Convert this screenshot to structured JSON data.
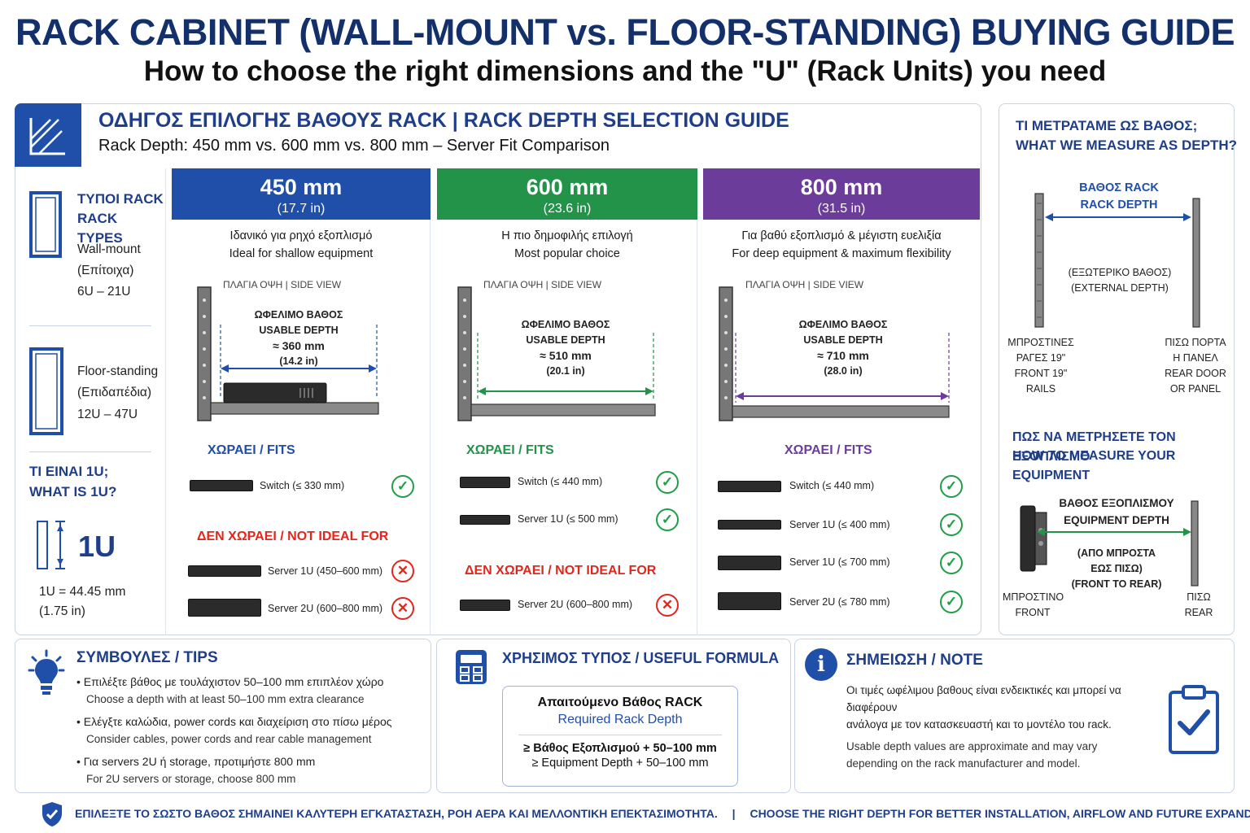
{
  "title": "RACK CABINET (WALL-MOUNT vs. FLOOR-STANDING) BUYING GUIDE",
  "subtitle": "How to choose the right dimensions and the \"U\" (Rack Units) you need",
  "guide": {
    "title": "ΟΔΗΓΟΣ ΕΠΙΛΟΓΗΣ ΒΑΘΟΥΣ RACK | RACK DEPTH SELECTION GUIDE",
    "subtitle": "Rack Depth: 450 mm vs. 600 mm vs. 800 mm – Server Fit Comparison"
  },
  "rack_types": {
    "heading_gr": "ΤΥΠΟΙ RACK",
    "heading_en": "RACK TYPES",
    "wall_1": "Wall-mount",
    "wall_2": "(Επίτοιχα)",
    "wall_3": "6U – 21U",
    "floor_1": "Floor-standing",
    "floor_2": "(Επιδαπέδια)",
    "floor_3": "12U – 47U",
    "what_gr": "ΤΙ ΕΙΝΑΙ 1U;",
    "what_en": "WHAT IS 1U?",
    "u_label": "1U",
    "u_eq": "1U = 44.45 mm",
    "u_in": "(1.75 in)"
  },
  "columns": [
    {
      "mm": "450 mm",
      "in": "(17.7 in)",
      "color": "#1f4fa8",
      "desc_gr": "Ιδανικό για ρηχό εξοπλισμό",
      "desc_en": "Ideal for shallow equipment",
      "side_view": "ΠΛΑΓΙΑ ΟΨΗ | SIDE VIEW",
      "usable_gr": "ΩΦΕΛΙΜΟ ΒΑΘΟΣ",
      "usable_en": "USABLE DEPTH",
      "usable_mm": "≈ 360 mm",
      "usable_in": "(14.2 in)",
      "fits_label": "ΧΩΡΑΕΙ / FITS",
      "fits": [
        "Switch (≤ 330 mm)"
      ],
      "not_label": "ΔΕΝ ΧΩΡΑΕΙ / NOT IDEAL FOR",
      "not": [
        "Server 1U (450–600 mm)",
        "Server 2U (600–800 mm)"
      ]
    },
    {
      "mm": "600 mm",
      "in": "(23.6 in)",
      "color": "#23934a",
      "desc_gr": "Η πιο δημοφιλής επιλογή",
      "desc_en": "Most popular choice",
      "side_view": "ΠΛΑΓΙΑ ΟΨΗ | SIDE VIEW",
      "usable_gr": "ΩΦΕΛΙΜΟ ΒΑΘΟΣ",
      "usable_en": "USABLE DEPTH",
      "usable_mm": "≈ 510 mm",
      "usable_in": "(20.1 in)",
      "fits_label": "ΧΩΡΑΕΙ / FITS",
      "fits": [
        "Switch (≤ 440 mm)",
        "Server 1U (≤ 500 mm)"
      ],
      "not_label": "ΔΕΝ ΧΩΡΑΕΙ / NOT IDEAL FOR",
      "not": [
        "Server 2U (600–800 mm)"
      ]
    },
    {
      "mm": "800 mm",
      "in": "(31.5 in)",
      "color": "#6c3c9a",
      "desc_gr": "Για βαθύ εξοπλισμό & μέγιστη ευελιξία",
      "desc_en": "For deep equipment & maximum flexibility",
      "side_view": "ΠΛΑΓΙΑ ΟΨΗ | SIDE VIEW",
      "usable_gr": "ΩΦΕΛΙΜΟ ΒΑΘΟΣ",
      "usable_en": "USABLE DEPTH",
      "usable_mm": "≈ 710 mm",
      "usable_in": "(28.0 in)",
      "fits_label": "ΧΩΡΑΕΙ / FITS",
      "fits": [
        "Switch (≤ 440 mm)",
        "Server 1U (≤ 400 mm)",
        "Server 1U (≤ 700 mm)",
        "Server 2U (≤ 780 mm)"
      ]
    }
  ],
  "measure": {
    "title_gr": "ΤΙ ΜΕΤΡΑΤΑΜΕ ΩΣ ΒΑΘΟΣ;",
    "title_en": "WHAT WE MEASURE AS DEPTH?",
    "rack_depth_gr": "ΒΑΘΟΣ RACK",
    "rack_depth_en": "RACK DEPTH",
    "ext_gr": "(ΕΞΩΤΕΡΙΚΟ ΒΑΘΟΣ)",
    "ext_en": "(EXTERNAL DEPTH)",
    "front_1": "ΜΠΡΟΣΤΙΝΕΣ",
    "front_2": "ΡΑΓΕΣ 19\"",
    "front_3": "FRONT 19\"",
    "front_4": "RAILS",
    "rear_1": "ΠΙΣΩ ΠΟΡΤΑ",
    "rear_2": "Η ΠΑΝΕΛ",
    "rear_3": "REAR DOOR",
    "rear_4": "OR PANEL",
    "how_gr": "ΠΩΣ ΝΑ ΜΕΤΡΗΣΕΤΕ ΤΟΝ ΕΞΟΠΛΙΣΜΟ",
    "how_en": "HOW TO MEASURE YOUR EQUIPMENT",
    "eq_gr": "ΒΑΘΟΣ ΕΞΟΠΛΙΣΜΟΥ",
    "eq_en": "EQUIPMENT DEPTH",
    "ft_1": "(ΑΠΟ ΜΠΡΟΣΤΑ",
    "ft_2": "ΕΩΣ ΠΙΣΩ)",
    "ft_3": "(FRONT TO REAR)",
    "front_gr": "ΜΠΡΟΣΤΙΝΟ",
    "front_en": "FRONT",
    "rear_gr": "ΠΙΣΩ",
    "rear_en": "REAR"
  },
  "tips": {
    "title": "ΣΥΜΒΟΥΛΕΣ / TIPS",
    "items": [
      {
        "gr": "• Επιλέξτε βάθος με τουλάχιστον 50–100 mm επιπλέον χώρο",
        "en": "Choose a depth with at least 50–100 mm extra clearance"
      },
      {
        "gr": "• Ελέγξτε καλώδια, power cords και διαχείριση στο πίσω μέρος",
        "en": "Consider cables, power cords and rear cable management"
      },
      {
        "gr": "• Για servers 2U ή storage, προτιμήστε 800 mm",
        "en": "For 2U servers or storage, choose 800 mm"
      }
    ]
  },
  "formula": {
    "title": "ΧΡΗΣΙΜΟΣ ΤΥΠΟΣ / USEFUL FORMULA",
    "head_gr": "Απαιτούμενο Βάθος RACK",
    "head_en": "Required Rack Depth",
    "line_gr": "≥ Βάθος Εξοπλισμού + 50–100 mm",
    "line_en": "≥ Equipment Depth + 50–100 mm"
  },
  "note": {
    "title": "ΣΗΜΕΙΩΣΗ / NOTE",
    "gr_1": "Οι τιμές ωφέλιμου βαθους είναι ενδεικτικές και μπορεί να διαφέρουν",
    "gr_2": "ανάλογα με τον κατασκευαστή και το μοντέλο του rack.",
    "en_1": "Usable depth values are approximate and may vary",
    "en_2": "depending on the rack manufacturer and model."
  },
  "footer": {
    "gr": "ΕΠΙΛΕΞΤΕ ΤΟ ΣΩΣΤΟ ΒΑΘΟΣ ΣΗΜΑΙΝΕΙ ΚΑΛΥΤΕΡΗ ΕΓΚΑΤΑΣΤΑΣΗ, ΡΟΗ ΑΕΡΑ ΚΑΙ ΜΕΛΛΟΝΤΙΚΗ ΕΠΕΚΤΑΣΙΜΟΤΗΤΑ.",
    "sep": "|",
    "en": "CHOOSE THE RIGHT DEPTH FOR BETTER INSTALLATION, AIRFLOW AND FUTURE EXPANDABILITY."
  }
}
